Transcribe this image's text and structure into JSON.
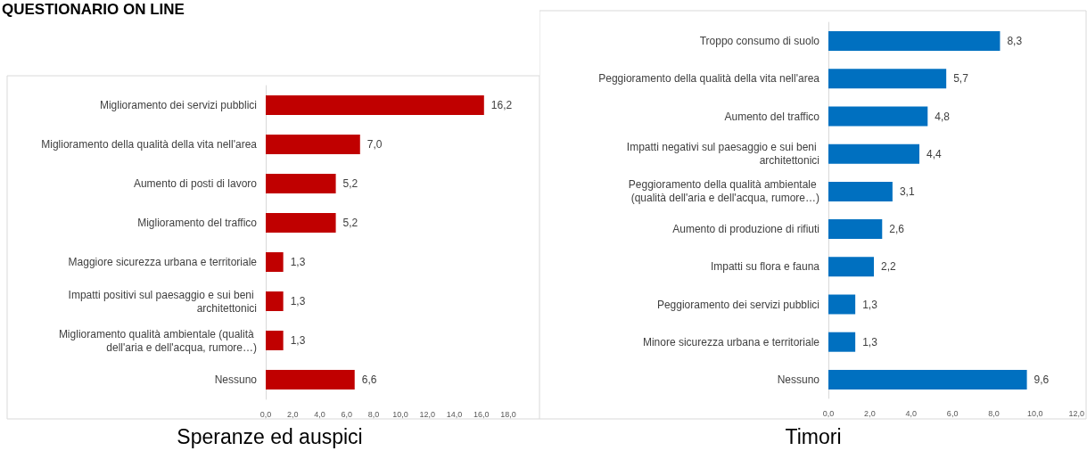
{
  "chart_data": [
    {
      "type": "bar",
      "orientation": "horizontal",
      "title": "Speranze ed auspici",
      "annotations": [
        "QUESTIONARIO ON LINE"
      ],
      "categories": [
        "Miglioramento dei servizi pubblici",
        "Miglioramento della qualità della vita nell'area",
        "Aumento di posti di lavoro",
        "Miglioramento del traffico",
        "Maggiore sicurezza urbana e territoriale",
        "Impatti positivi sul paesaggio e sui beni architettonici",
        "Miglioramento qualità ambientale (qualità dell'aria e dell'acqua, rumore…)",
        "Nessuno"
      ],
      "values": [
        16.2,
        7.0,
        5.2,
        5.2,
        1.3,
        1.3,
        1.3,
        6.6
      ],
      "value_labels": [
        "16,2",
        "7,0",
        "5,2",
        "5,2",
        "1,3",
        "1,3",
        "1,3",
        "6,6"
      ],
      "color": "#c00000",
      "xlim": [
        0,
        18
      ],
      "xticks": [
        {
          "value": 0,
          "label": "0,0"
        },
        {
          "value": 2,
          "label": "2,0"
        },
        {
          "value": 4,
          "label": "4,0"
        },
        {
          "value": 6,
          "label": "6,0"
        },
        {
          "value": 8,
          "label": "8,0"
        },
        {
          "value": 10,
          "label": "10,0"
        },
        {
          "value": 12,
          "label": "12,0"
        },
        {
          "value": 14,
          "label": "14,0"
        },
        {
          "value": 16,
          "label": "16,0"
        },
        {
          "value": 18,
          "label": "18,0"
        }
      ]
    },
    {
      "type": "bar",
      "orientation": "horizontal",
      "title": "Timori",
      "categories": [
        "Troppo consumo di suolo",
        "Peggioramento della qualità della vita nell'area",
        "Aumento del traffico",
        "Impatti negativi sul paesaggio e sui beni architettonici",
        "Peggioramento della qualità ambientale (qualità dell'aria e dell'acqua, rumore…)",
        "Aumento di produzione di rifiuti",
        "Impatti su flora e fauna",
        "Peggioramento dei servizi pubblici",
        "Minore sicurezza urbana e territoriale",
        "Nessuno"
      ],
      "values": [
        8.3,
        5.7,
        4.8,
        4.4,
        3.1,
        2.6,
        2.2,
        1.3,
        1.3,
        9.6
      ],
      "value_labels": [
        "8,3",
        "5,7",
        "4,8",
        "4,4",
        "3,1",
        "2,6",
        "2,2",
        "1,3",
        "1,3",
        "9,6"
      ],
      "color": "#0070c0",
      "xlim": [
        0,
        12
      ],
      "xticks": [
        {
          "value": 0,
          "label": "0,0"
        },
        {
          "value": 2,
          "label": "2,0"
        },
        {
          "value": 4,
          "label": "4,0"
        },
        {
          "value": 6,
          "label": "6,0"
        },
        {
          "value": 8,
          "label": "8,0"
        },
        {
          "value": 10,
          "label": "10,0"
        },
        {
          "value": 12,
          "label": "12,0"
        }
      ]
    }
  ]
}
